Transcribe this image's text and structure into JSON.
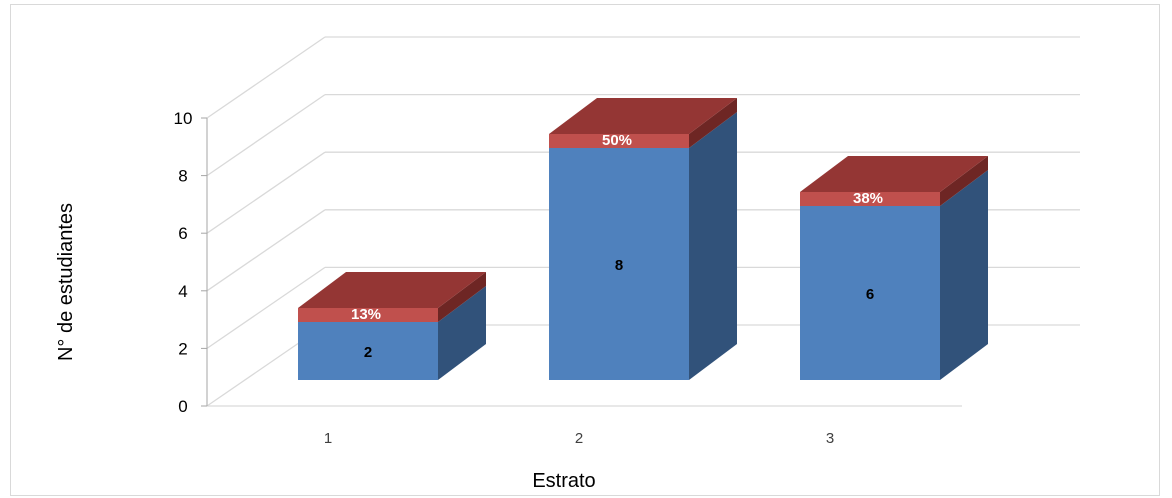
{
  "chart_data": {
    "type": "bar",
    "stacked": true,
    "three_d": true,
    "categories": [
      "1",
      "2",
      "3"
    ],
    "series": [
      {
        "values": [
          2,
          8,
          6
        ],
        "labels": [
          "2",
          "8",
          "6"
        ]
      },
      {
        "values": [
          0.13,
          0.5,
          0.38
        ],
        "labels": [
          "13%",
          "50%",
          "38%"
        ]
      }
    ],
    "xlabel": "Estrato",
    "ylabel": "N° de estudiantes",
    "ylim": [
      0,
      10
    ],
    "yticks": [
      "0",
      "2",
      "4",
      "6",
      "8",
      "10"
    ],
    "grid": true,
    "legend": "none",
    "colors": {
      "front": "#4f81bd",
      "side": "#31527a",
      "top_cap": "#943634",
      "cap_front": "#c0504d",
      "grid": "#d9d9d9",
      "axis": "#a6a6a6"
    }
  }
}
